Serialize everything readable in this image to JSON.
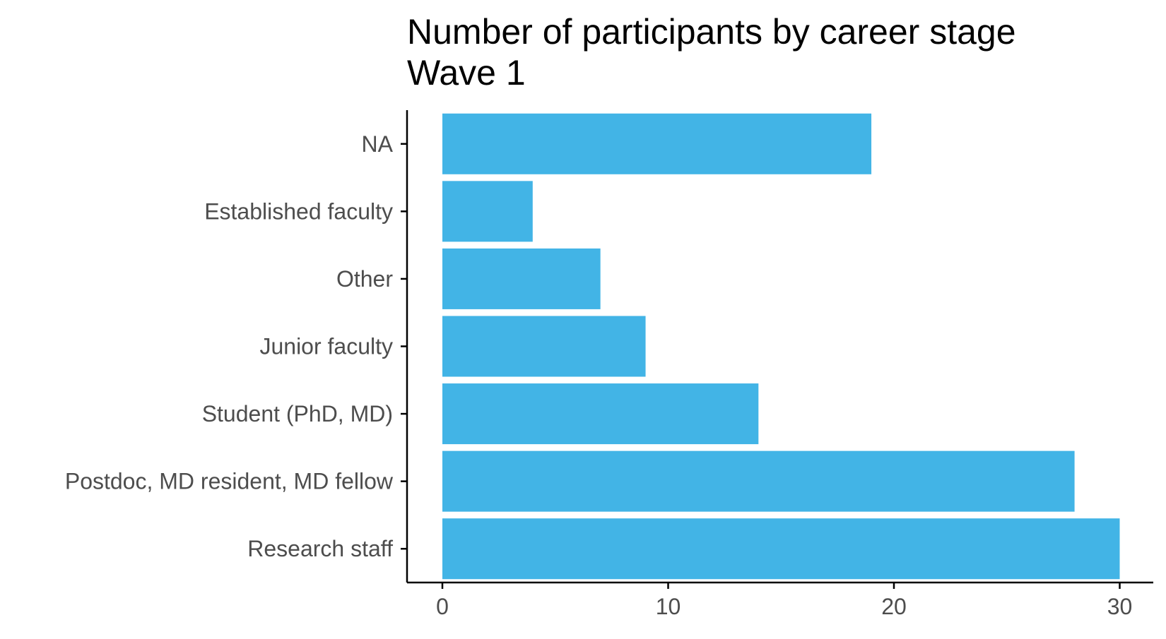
{
  "chart_data": {
    "type": "bar",
    "orientation": "horizontal",
    "title": "Number of participants by career stage",
    "subtitle": "Wave 1",
    "xlabel": "",
    "ylabel": "",
    "categories": [
      "NA",
      "Established faculty",
      "Other",
      "Junior faculty",
      "Student (PhD, MD)",
      "Postdoc, MD resident, MD fellow",
      "Research staff"
    ],
    "values": [
      19,
      4,
      7,
      9,
      14,
      28,
      30
    ],
    "xlim": [
      0,
      31.5
    ],
    "xticks": [
      "0",
      "10",
      "20",
      "30"
    ],
    "grid": false,
    "legend": "none",
    "colors": {
      "bar": "#42b4e6",
      "axis": "#000000",
      "tick_text": "#4d4d4d",
      "title": "#000000"
    }
  }
}
